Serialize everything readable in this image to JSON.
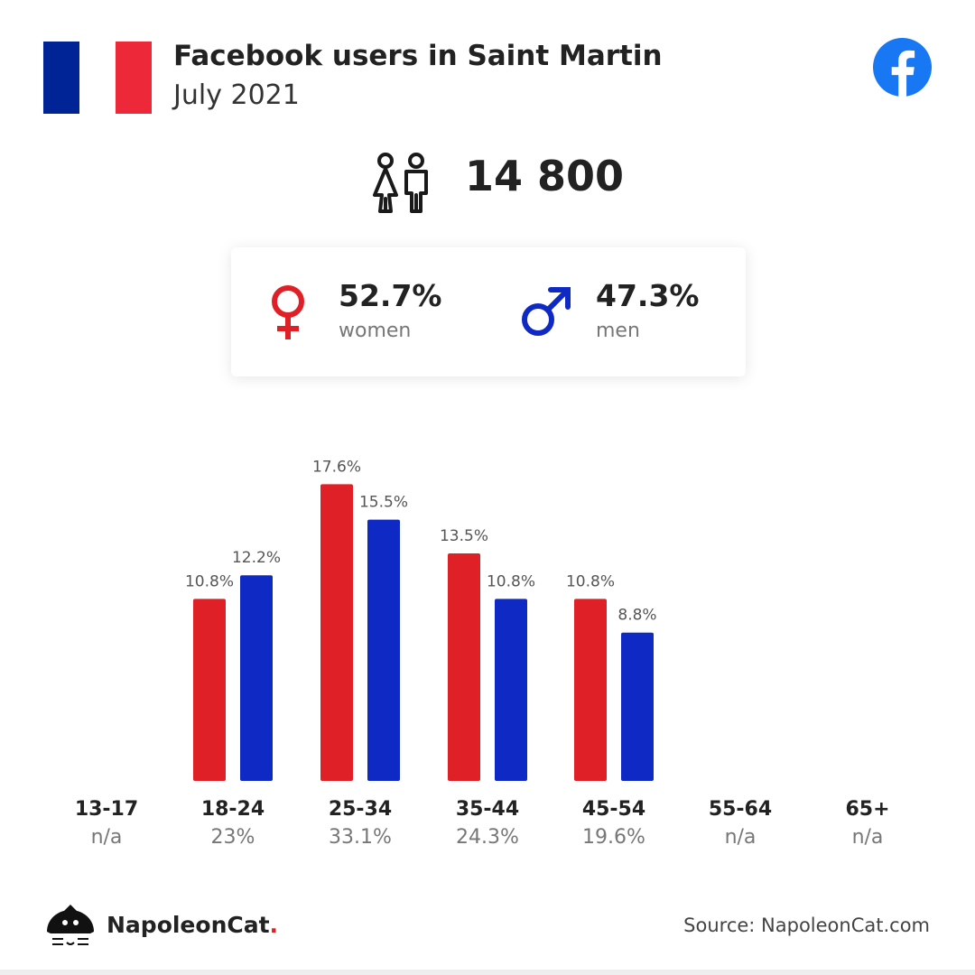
{
  "header": {
    "title": "Facebook users in Saint Martin",
    "subtitle": "July 2021",
    "flag_colors": [
      "#002395",
      "#ffffff",
      "#ED2939"
    ],
    "brand_icon": "facebook-icon",
    "brand_color": "#1877F2"
  },
  "summary": {
    "people_icon": "people-icon",
    "total_users": "14 800"
  },
  "gender": {
    "women": {
      "icon": "female-symbol-icon",
      "percent": "52.7%",
      "label": "women",
      "color": "#E02027"
    },
    "men": {
      "icon": "male-symbol-icon",
      "percent": "47.3%",
      "label": "men",
      "color": "#0F2AC4"
    }
  },
  "chart_data": {
    "type": "bar",
    "categories": [
      "13-17",
      "18-24",
      "25-34",
      "35-44",
      "45-54",
      "55-64",
      "65+"
    ],
    "category_totals": [
      "n/a",
      "23%",
      "33.1%",
      "24.3%",
      "19.6%",
      "n/a",
      "n/a"
    ],
    "series": [
      {
        "key": "women",
        "color": "#E02027",
        "values": [
          null,
          10.8,
          17.6,
          13.5,
          10.8,
          null,
          null
        ],
        "labels": [
          "",
          "10.8%",
          "17.6%",
          "13.5%",
          "10.8%",
          "",
          ""
        ]
      },
      {
        "key": "men",
        "color": "#0F2AC4",
        "values": [
          null,
          12.2,
          15.5,
          10.8,
          8.8,
          null,
          null
        ],
        "labels": [
          "",
          "12.2%",
          "15.5%",
          "10.8%",
          "8.8%",
          "",
          ""
        ]
      }
    ],
    "ylim": [
      0,
      18
    ],
    "grid": false,
    "legend": "none",
    "title": "",
    "xlabel": "",
    "ylabel": ""
  },
  "footer": {
    "logo_icon": "napoleoncat-logo-icon",
    "brand_name": "NapoleonCat",
    "brand_dot": ".",
    "source": "Source: NapoleonCat.com"
  }
}
